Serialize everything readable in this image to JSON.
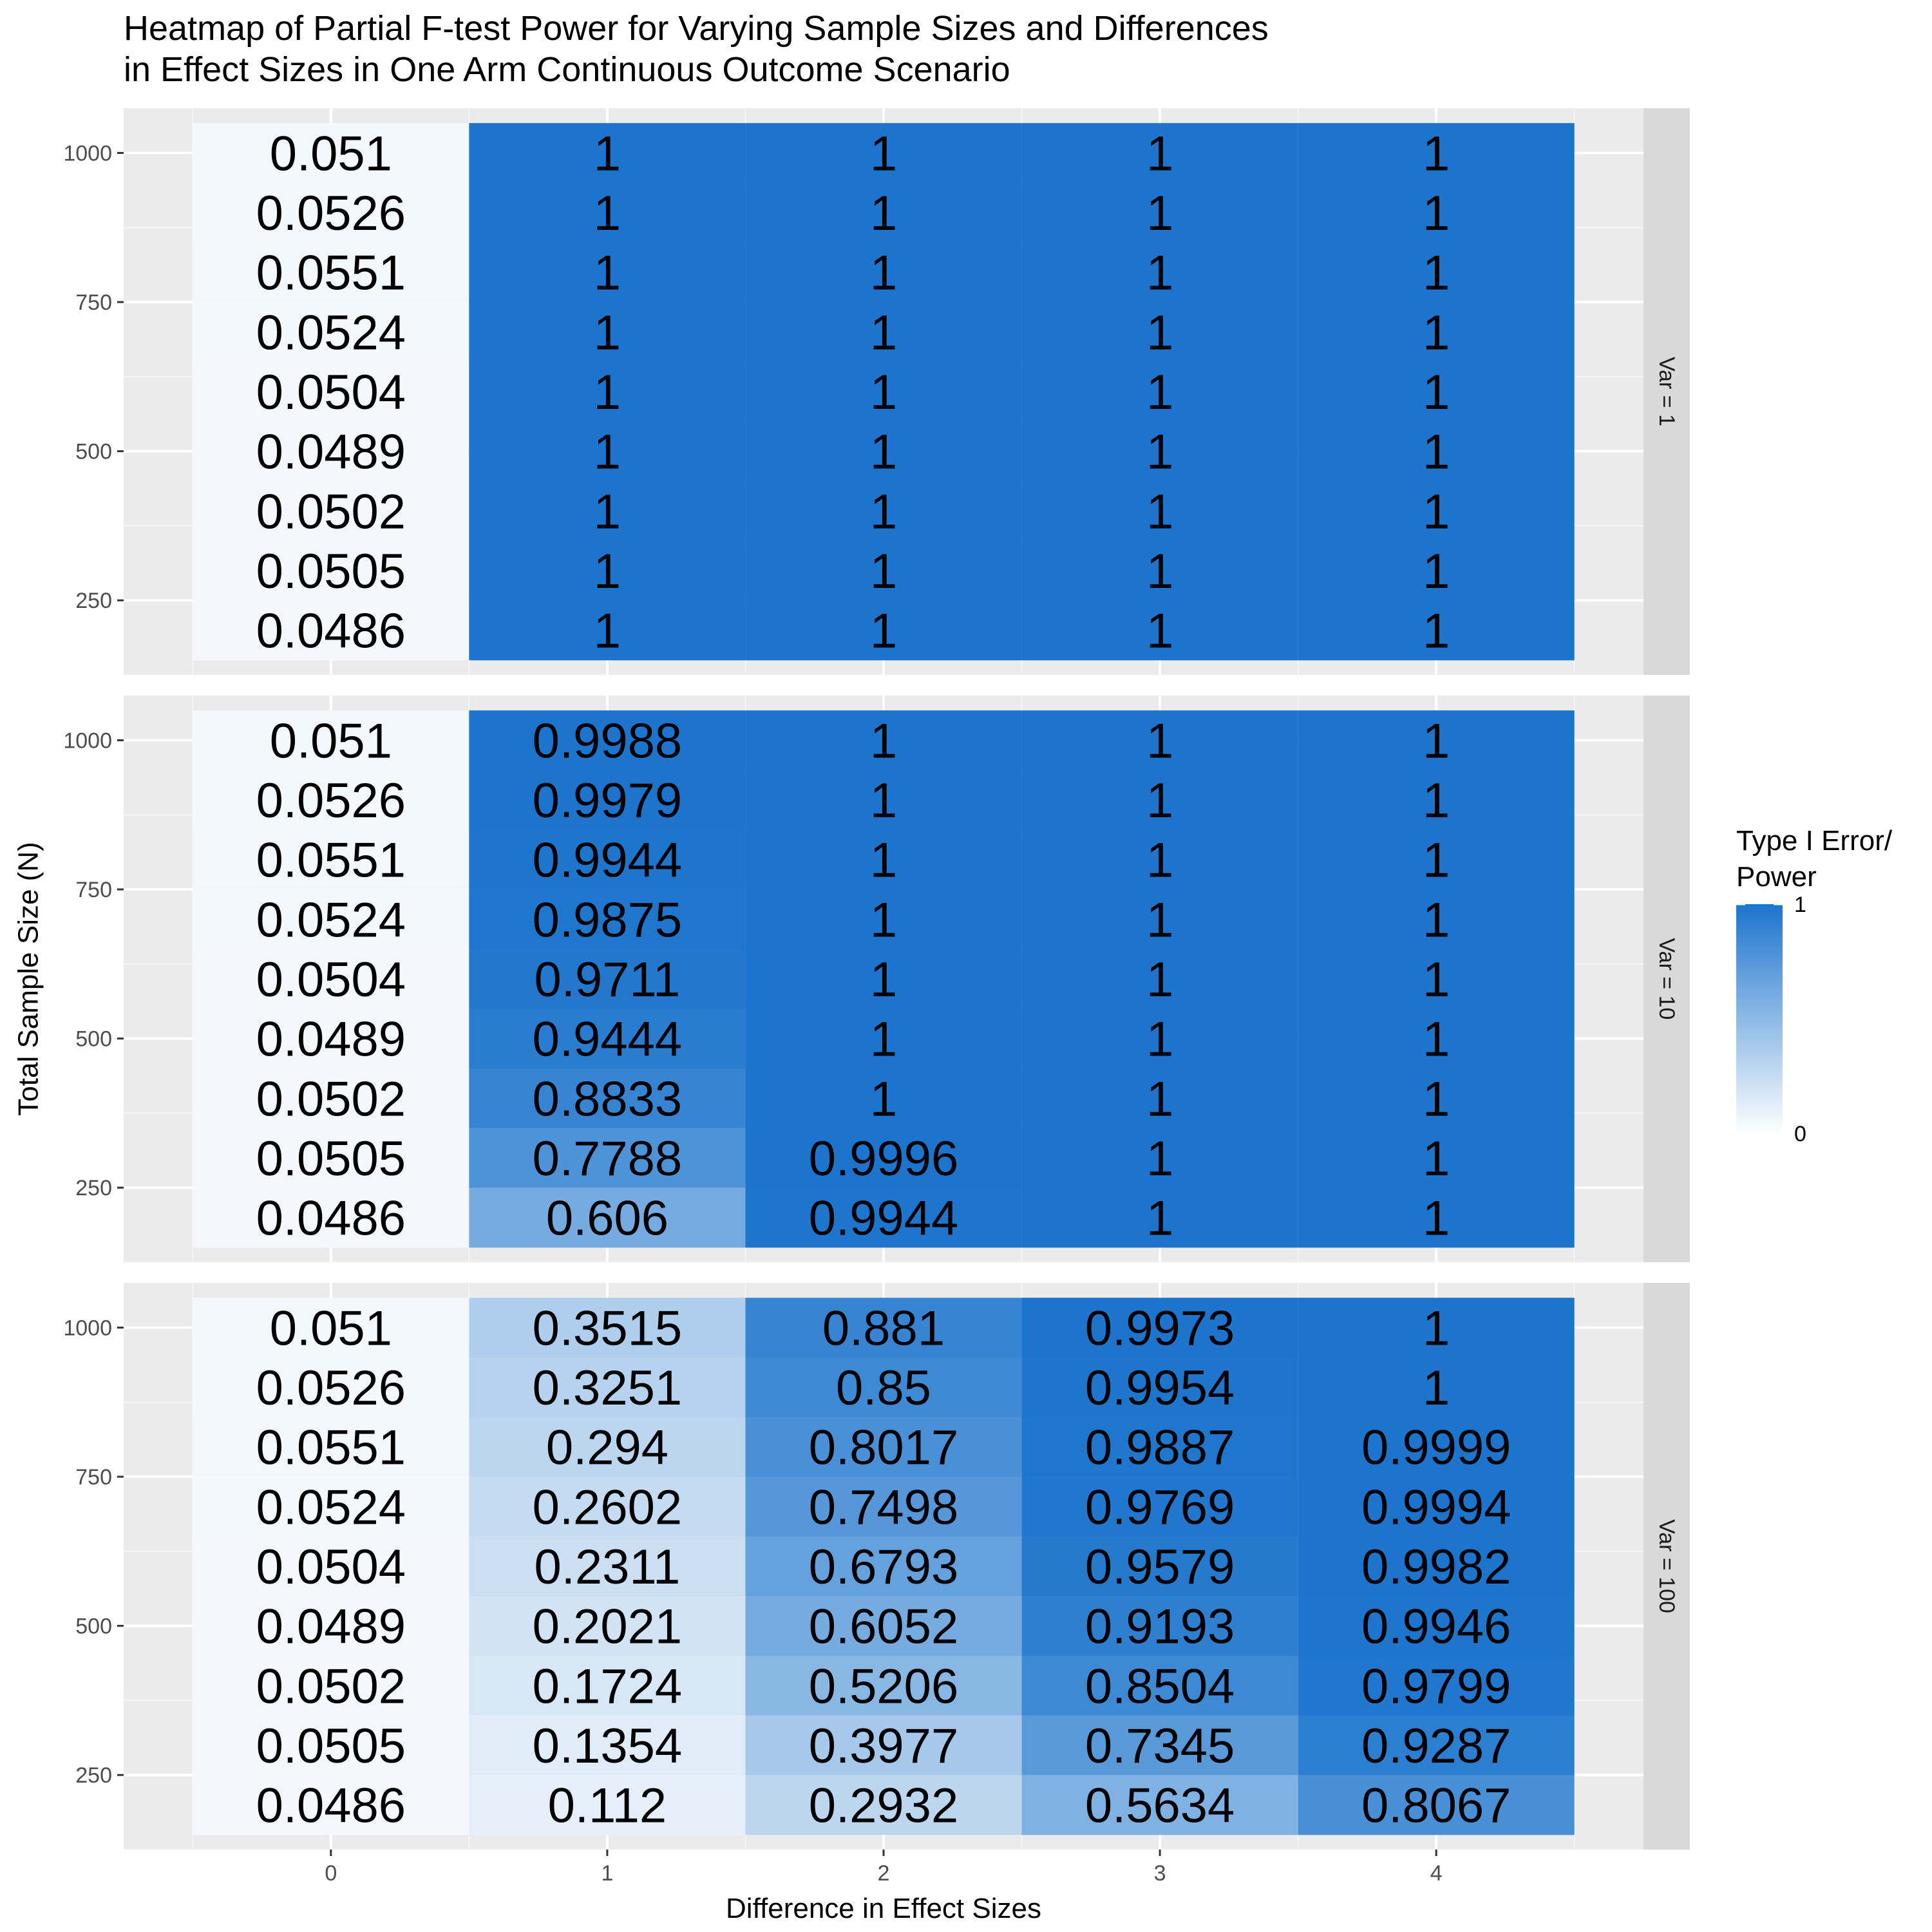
{
  "chart_data": {
    "type": "heatmap",
    "title": [
      "Heatmap of Partial F-test Power for Varying Sample Sizes and Differences",
      "in Effect Sizes in One Arm Continuous Outcome Scenario"
    ],
    "xlabel": "Difference in Effect Sizes",
    "ylabel": "Total Sample Size (N)",
    "x": [
      0,
      1,
      2,
      3,
      4
    ],
    "x_tick_labels": [
      "0",
      "1",
      "2",
      "3",
      "4"
    ],
    "y": [
      1000,
      900,
      800,
      700,
      600,
      500,
      400,
      300,
      200
    ],
    "y_ticks": [
      250,
      500,
      750,
      1000
    ],
    "y_tick_labels": [
      "250",
      "500",
      "750",
      "1000"
    ],
    "ylim": [
      125,
      1075
    ],
    "legend": {
      "title": [
        "Type I Error/",
        "Power"
      ],
      "position": "right",
      "labels": [
        "1",
        "0"
      ],
      "low_color": "#ffffff",
      "high_color": "#1c74cc",
      "range": [
        0,
        1
      ]
    },
    "panels": [
      {
        "label": "Var =  1",
        "values": [
          [
            "0.051",
            "1",
            "1",
            "1",
            "1"
          ],
          [
            "0.0526",
            "1",
            "1",
            "1",
            "1"
          ],
          [
            "0.0551",
            "1",
            "1",
            "1",
            "1"
          ],
          [
            "0.0524",
            "1",
            "1",
            "1",
            "1"
          ],
          [
            "0.0504",
            "1",
            "1",
            "1",
            "1"
          ],
          [
            "0.0489",
            "1",
            "1",
            "1",
            "1"
          ],
          [
            "0.0502",
            "1",
            "1",
            "1",
            "1"
          ],
          [
            "0.0505",
            "1",
            "1",
            "1",
            "1"
          ],
          [
            "0.0486",
            "1",
            "1",
            "1",
            "1"
          ]
        ]
      },
      {
        "label": "Var =  10",
        "values": [
          [
            "0.051",
            "0.9988",
            "1",
            "1",
            "1"
          ],
          [
            "0.0526",
            "0.9979",
            "1",
            "1",
            "1"
          ],
          [
            "0.0551",
            "0.9944",
            "1",
            "1",
            "1"
          ],
          [
            "0.0524",
            "0.9875",
            "1",
            "1",
            "1"
          ],
          [
            "0.0504",
            "0.9711",
            "1",
            "1",
            "1"
          ],
          [
            "0.0489",
            "0.9444",
            "1",
            "1",
            "1"
          ],
          [
            "0.0502",
            "0.8833",
            "1",
            "1",
            "1"
          ],
          [
            "0.0505",
            "0.7788",
            "0.9996",
            "1",
            "1"
          ],
          [
            "0.0486",
            "0.606",
            "0.9944",
            "1",
            "1"
          ]
        ]
      },
      {
        "label": "Var =  100",
        "values": [
          [
            "0.051",
            "0.3515",
            "0.881",
            "0.9973",
            "1"
          ],
          [
            "0.0526",
            "0.3251",
            "0.85",
            "0.9954",
            "1"
          ],
          [
            "0.0551",
            "0.294",
            "0.8017",
            "0.9887",
            "0.9999"
          ],
          [
            "0.0524",
            "0.2602",
            "0.7498",
            "0.9769",
            "0.9994"
          ],
          [
            "0.0504",
            "0.2311",
            "0.6793",
            "0.9579",
            "0.9982"
          ],
          [
            "0.0489",
            "0.2021",
            "0.6052",
            "0.9193",
            "0.9946"
          ],
          [
            "0.0502",
            "0.1724",
            "0.5206",
            "0.8504",
            "0.9799"
          ],
          [
            "0.0505",
            "0.1354",
            "0.3977",
            "0.7345",
            "0.9287"
          ],
          [
            "0.0486",
            "0.112",
            "0.2932",
            "0.5634",
            "0.8067"
          ]
        ]
      }
    ]
  }
}
